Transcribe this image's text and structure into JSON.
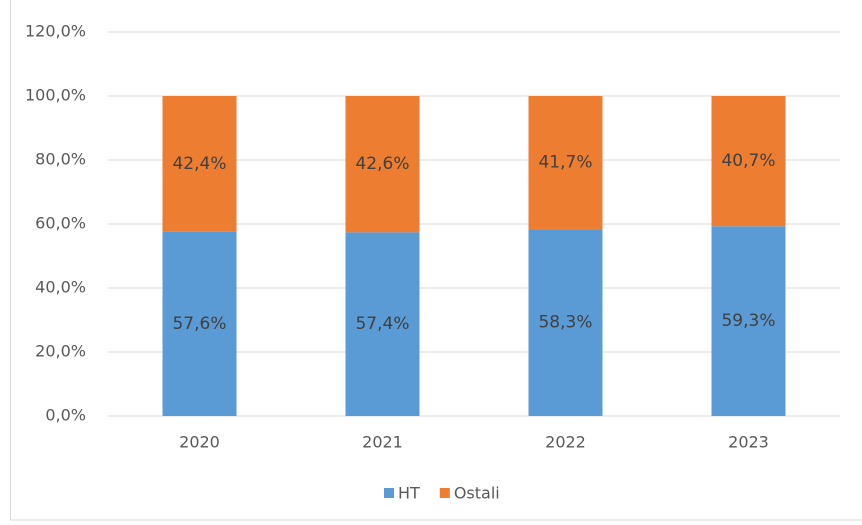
{
  "chart_data": {
    "type": "stacked_bar",
    "categories": [
      "2020",
      "2021",
      "2022",
      "2023"
    ],
    "series": [
      {
        "name": "HT",
        "color": "#5b9bd5",
        "values": [
          57.6,
          57.4,
          58.3,
          59.3
        ],
        "value_labels": [
          "57,6%",
          "57,4%",
          "58,3%",
          "59,3%"
        ]
      },
      {
        "name": "Ostali",
        "color": "#ed7d31",
        "values": [
          42.4,
          42.6,
          41.7,
          40.7
        ],
        "value_labels": [
          "42,4%",
          "42,6%",
          "41,7%",
          "40,7%"
        ]
      }
    ],
    "ylim": [
      0,
      120
    ],
    "yticks": [
      {
        "value": 0,
        "label": "0,0%"
      },
      {
        "value": 20,
        "label": "20,0%"
      },
      {
        "value": 40,
        "label": "40,0%"
      },
      {
        "value": 60,
        "label": "60,0%"
      },
      {
        "value": 80,
        "label": "80,0%"
      },
      {
        "value": 100,
        "label": "100,0%"
      },
      {
        "value": 120,
        "label": "120,0%"
      }
    ],
    "grid": true,
    "legend": "bottom"
  }
}
